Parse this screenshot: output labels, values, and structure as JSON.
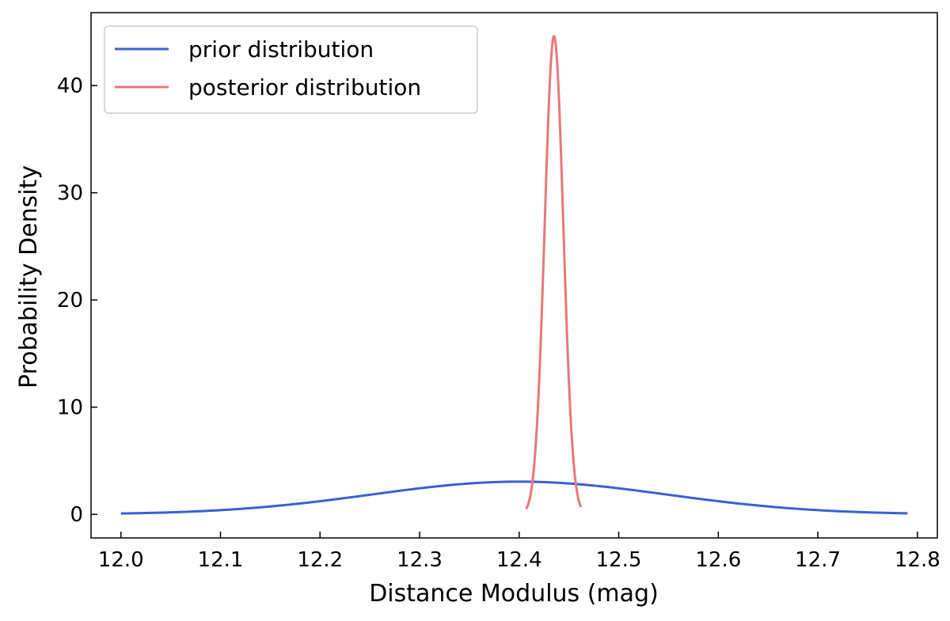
{
  "chart_data": {
    "type": "line",
    "xlabel": "Distance Modulus (mag)",
    "ylabel": "Probability Density",
    "xlim": [
      11.97,
      12.82
    ],
    "ylim": [
      -2.2,
      46.8
    ],
    "x_ticks": [
      {
        "value": 12.0,
        "label": "12.0"
      },
      {
        "value": 12.1,
        "label": "12.1"
      },
      {
        "value": 12.2,
        "label": "12.2"
      },
      {
        "value": 12.3,
        "label": "12.3"
      },
      {
        "value": 12.4,
        "label": "12.4"
      },
      {
        "value": 12.5,
        "label": "12.5"
      },
      {
        "value": 12.6,
        "label": "12.6"
      },
      {
        "value": 12.7,
        "label": "12.7"
      },
      {
        "value": 12.8,
        "label": "12.8"
      }
    ],
    "y_ticks": [
      {
        "value": 0,
        "label": "0"
      },
      {
        "value": 10,
        "label": "10"
      },
      {
        "value": 20,
        "label": "20"
      },
      {
        "value": 30,
        "label": "30"
      },
      {
        "value": 40,
        "label": "40"
      }
    ],
    "grid": false,
    "legend_position": "top-left",
    "series": [
      {
        "name": "prior distribution",
        "color": "#3b5fd6",
        "x": [
          12.0,
          12.05,
          12.1,
          12.15,
          12.2,
          12.25,
          12.3,
          12.35,
          12.4,
          12.45,
          12.5,
          12.55,
          12.6,
          12.65,
          12.7,
          12.75,
          12.79
        ],
        "y": [
          0.08,
          0.18,
          0.37,
          0.67,
          1.09,
          1.59,
          2.15,
          2.68,
          3.05,
          2.68,
          2.15,
          1.59,
          1.09,
          0.67,
          0.37,
          0.18,
          0.11
        ]
      },
      {
        "name": "posterior distribution",
        "color": "#e8777a",
        "x": [
          12.407,
          12.411,
          12.415,
          12.419,
          12.423,
          12.427,
          12.431,
          12.435,
          12.439,
          12.443,
          12.447,
          12.451,
          12.455,
          12.459,
          12.462
        ],
        "y": [
          0.5,
          2.0,
          5.4,
          11.7,
          20.4,
          31.0,
          40.5,
          44.6,
          40.5,
          31.0,
          20.4,
          11.7,
          5.4,
          2.0,
          0.5
        ]
      }
    ]
  }
}
